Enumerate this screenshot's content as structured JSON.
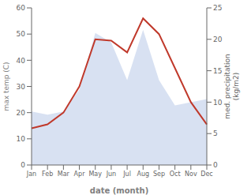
{
  "chart_data": {
    "type": "line",
    "categories": [
      "Jan",
      "Feb",
      "Mar",
      "Apr",
      "May",
      "Jun",
      "Jul",
      "Aug",
      "Sep",
      "Oct",
      "Nov",
      "Dec"
    ],
    "series": [
      {
        "type": "area",
        "axis": "y2",
        "color": "#b8c9e8",
        "values": [
          8.5,
          8.0,
          8.5,
          12.0,
          21.0,
          19.5,
          13.5,
          21.5,
          13.5,
          9.5,
          10.0,
          10.5
        ]
      },
      {
        "type": "line",
        "color": "#c0392b",
        "values": [
          14.0,
          15.5,
          20.0,
          30.0,
          48.0,
          47.5,
          43.0,
          56.0,
          50.0,
          37.0,
          24.0,
          15.5
        ]
      }
    ],
    "xlabel": "date (month)",
    "ylabel": "max temp (C)",
    "y2label": "med. precipitation\n(kg/m2)",
    "ylim": [
      0,
      60
    ],
    "yticks": [
      0,
      10,
      20,
      30,
      40,
      50,
      60
    ],
    "y2lim": [
      0,
      25
    ],
    "y2ticks": [
      0,
      5,
      10,
      15,
      20,
      25
    ],
    "grid": false
  }
}
